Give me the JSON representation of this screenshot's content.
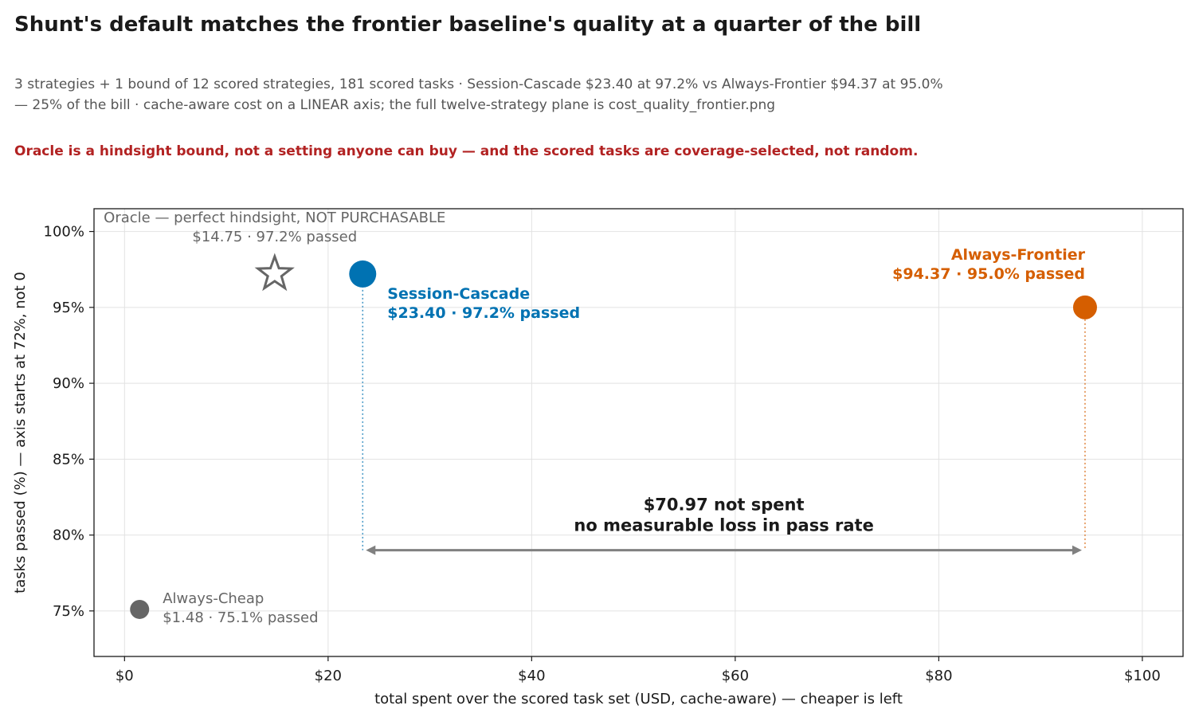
{
  "header": {
    "title": "Shunt's default matches the frontier baseline's quality at a quarter of the bill",
    "subtitle": "3 strategies + 1 bound of 12 scored strategies, 181 scored tasks · Session-Cascade $23.40 at 97.2% vs Always-Frontier $94.37 at 95.0% — 25% of the bill · cache-aware cost on a LINEAR axis; the full twelve-strategy plane is cost_quality_frontier.png",
    "caveat": "Oracle is a hindsight bound, not a setting anyone can buy — and the scored tasks are coverage-selected, not random."
  },
  "chart_data": {
    "type": "scatter",
    "xlabel": "total spent over the scored task set (USD, cache-aware) — cheaper is left",
    "ylabel": "tasks passed (%) — axis starts at 72%, not 0",
    "xlim": [
      -3,
      104
    ],
    "ylim": [
      72,
      101.5
    ],
    "x_ticks": [
      0,
      20,
      40,
      60,
      80,
      100
    ],
    "x_tick_labels": [
      "$0",
      "$20",
      "$40",
      "$60",
      "$80",
      "$100"
    ],
    "y_ticks": [
      75,
      80,
      85,
      90,
      95,
      100
    ],
    "y_tick_labels": [
      "75%",
      "80%",
      "85%",
      "90%",
      "95%",
      "100%"
    ],
    "grid": true,
    "legend": "none",
    "points": [
      {
        "key": "oracle",
        "x": 14.75,
        "y": 97.2,
        "marker": "star",
        "color": "#666666",
        "label_line1": "Oracle — perfect hindsight, NOT PURCHASABLE",
        "label_line2": "$14.75 · 97.2% passed"
      },
      {
        "key": "session-cascade",
        "x": 23.4,
        "y": 97.2,
        "marker": "circle",
        "color": "#0072b2",
        "label_line1": "Session-Cascade",
        "label_line2": "$23.40 · 97.2% passed"
      },
      {
        "key": "always-frontier",
        "x": 94.37,
        "y": 95.0,
        "marker": "circle",
        "color": "#d55e00",
        "label_line1": "Always-Frontier",
        "label_line2": "$94.37 · 95.0% passed"
      },
      {
        "key": "always-cheap",
        "x": 1.48,
        "y": 75.1,
        "marker": "circle",
        "color": "#666666",
        "label_line1": "Always-Cheap",
        "label_line2": "$1.48 · 75.1% passed"
      }
    ],
    "savings_annotation": {
      "from_x": 23.4,
      "to_x": 94.37,
      "at_y": 79.0,
      "line1": "$70.97 not spent",
      "line2": "no measurable loss in pass rate"
    }
  }
}
